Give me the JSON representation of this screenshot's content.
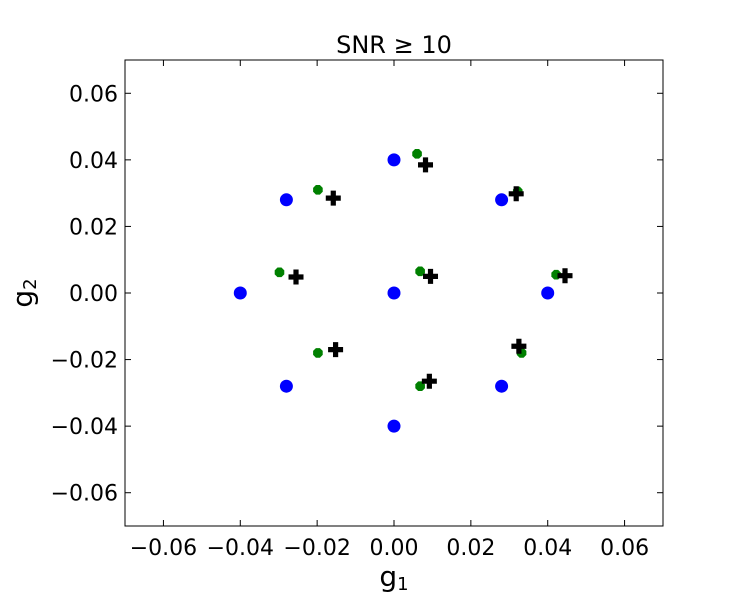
{
  "chart_data": {
    "type": "scatter",
    "title": "SNR ≥ 10",
    "xlabel": "g",
    "xlabel_sub": "1",
    "ylabel": "g",
    "ylabel_sub": "2",
    "xlim": [
      -0.07,
      0.07
    ],
    "ylim": [
      -0.07,
      0.07
    ],
    "x_ticks": [
      -0.06,
      -0.04,
      -0.02,
      0.0,
      0.02,
      0.04,
      0.06
    ],
    "x_tick_labels": [
      "−0.06",
      "−0.04",
      "−0.02",
      "0.00",
      "0.02",
      "0.04",
      "0.06"
    ],
    "y_ticks": [
      0.06,
      0.04,
      0.02,
      0.0,
      -0.02,
      -0.04,
      -0.06
    ],
    "y_tick_labels": [
      "0.06",
      "0.04",
      "0.02",
      "0.00",
      "−0.02",
      "−0.04",
      "−0.06"
    ],
    "grid": false,
    "series": [
      {
        "marker": "circle",
        "color": "#0000ff",
        "points": [
          {
            "x": 0.0,
            "y": 0.04
          },
          {
            "x": 0.0,
            "y": 0.0
          },
          {
            "x": 0.0,
            "y": -0.04
          },
          {
            "x": -0.04,
            "y": 0.0
          },
          {
            "x": 0.04,
            "y": 0.0
          },
          {
            "x": -0.028,
            "y": 0.028
          },
          {
            "x": 0.028,
            "y": 0.028
          },
          {
            "x": -0.028,
            "y": -0.028
          },
          {
            "x": 0.028,
            "y": -0.028
          }
        ]
      },
      {
        "marker": "plus",
        "color": "#000000",
        "points": [
          {
            "x": 0.0082,
            "y": 0.0385
          },
          {
            "x": -0.0158,
            "y": 0.0285
          },
          {
            "x": 0.0318,
            "y": 0.0298
          },
          {
            "x": -0.0255,
            "y": 0.0048
          },
          {
            "x": 0.0095,
            "y": 0.005
          },
          {
            "x": 0.0445,
            "y": 0.0052
          },
          {
            "x": -0.0152,
            "y": -0.017
          },
          {
            "x": 0.0325,
            "y": -0.016
          },
          {
            "x": 0.0092,
            "y": -0.0265
          }
        ]
      },
      {
        "marker": "octagon",
        "color": "#008000",
        "points": [
          {
            "x": 0.006,
            "y": 0.0418
          },
          {
            "x": -0.0198,
            "y": 0.031
          },
          {
            "x": 0.0322,
            "y": 0.0305
          },
          {
            "x": -0.0298,
            "y": 0.0062
          },
          {
            "x": 0.0068,
            "y": 0.0065
          },
          {
            "x": 0.0422,
            "y": 0.0055
          },
          {
            "x": -0.0198,
            "y": -0.018
          },
          {
            "x": 0.0332,
            "y": -0.018
          },
          {
            "x": 0.0068,
            "y": -0.028
          }
        ]
      }
    ]
  }
}
